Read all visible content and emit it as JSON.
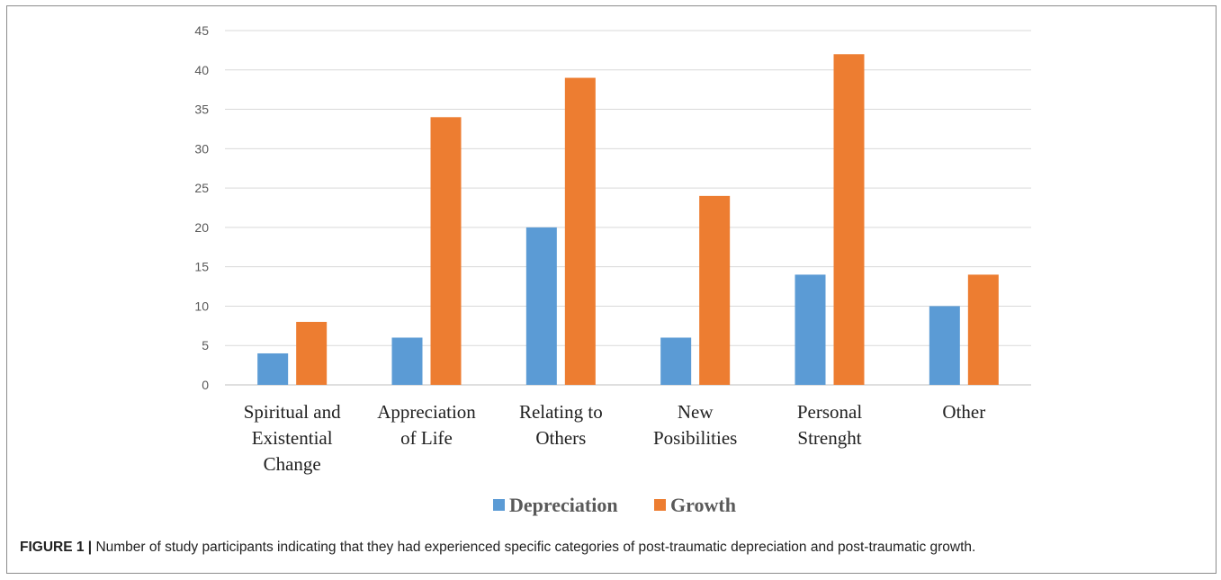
{
  "chart_data": {
    "type": "bar",
    "categories": [
      [
        "Spiritual and",
        "Existential",
        "Change"
      ],
      [
        "Appreciation",
        "of Life"
      ],
      [
        "Relating to",
        "Others"
      ],
      [
        "New",
        "Posibilities"
      ],
      [
        "Personal",
        "Strenght"
      ],
      [
        "Other"
      ]
    ],
    "series": [
      {
        "name": "Depreciation",
        "color": "#5b9bd5",
        "values": [
          4,
          6,
          20,
          6,
          14,
          10
        ]
      },
      {
        "name": "Growth",
        "color": "#ed7d31",
        "values": [
          8,
          34,
          39,
          24,
          42,
          14
        ]
      }
    ],
    "ylim": [
      0,
      45
    ],
    "yticks": [
      0,
      5,
      10,
      15,
      20,
      25,
      30,
      35,
      40,
      45
    ],
    "grid": true,
    "legend_position": "bottom"
  },
  "caption": {
    "label": "FIGURE 1 |",
    "text": " Number of study participants indicating that they had experienced specific categories of post-traumatic depreciation and post-traumatic growth."
  }
}
